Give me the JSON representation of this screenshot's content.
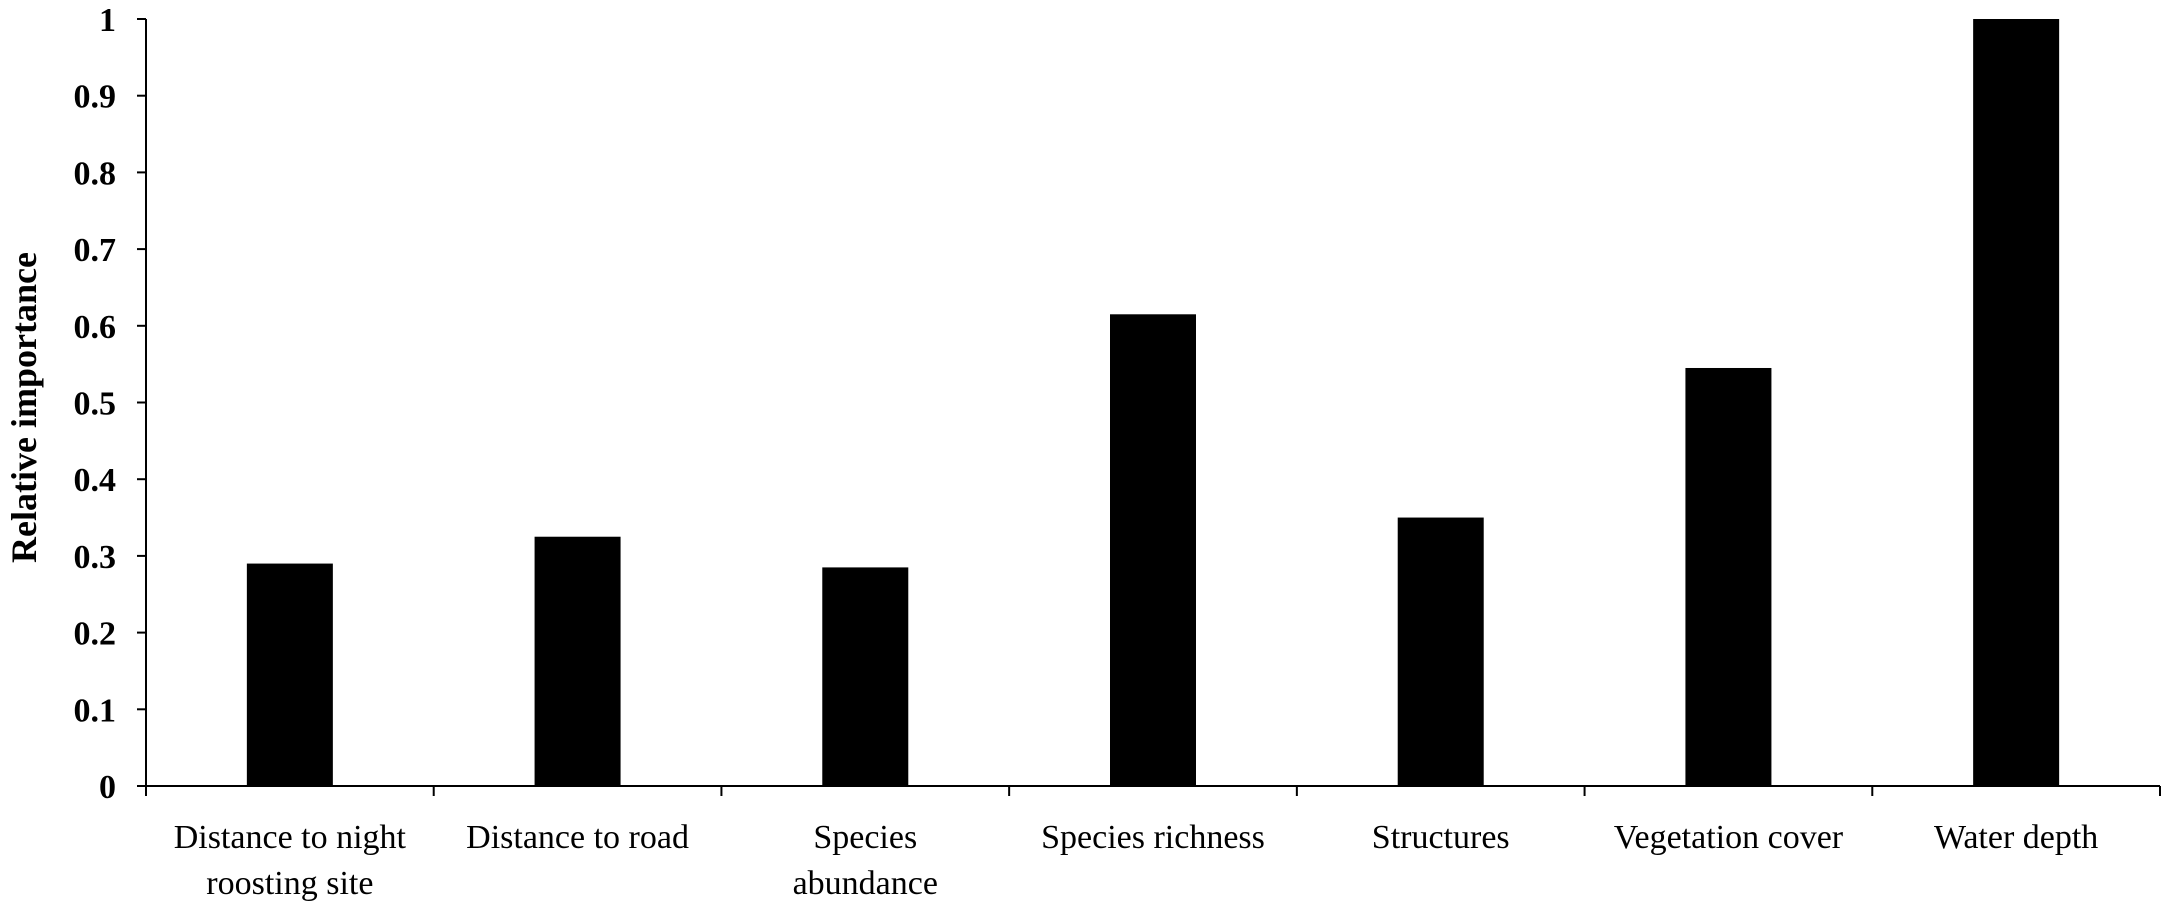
{
  "chart_data": {
    "type": "bar",
    "ylabel": "Relative importance",
    "xlabel": "",
    "ylim": [
      0,
      1
    ],
    "yticks": [
      "0",
      "0.1",
      "0.2",
      "0.3",
      "0.4",
      "0.5",
      "0.6",
      "0.7",
      "0.8",
      "0.9",
      "1"
    ],
    "categories": [
      [
        "Distance to night",
        "roosting site"
      ],
      [
        "Distance to road"
      ],
      [
        "Species",
        "abundance"
      ],
      [
        "Species richness"
      ],
      [
        "Structures"
      ],
      [
        "Vegetation cover"
      ],
      [
        "Water depth"
      ]
    ],
    "values": [
      0.29,
      0.325,
      0.285,
      0.615,
      0.35,
      0.545,
      1.0
    ],
    "bar_color": "#000000",
    "grid": false,
    "legend": "none"
  }
}
